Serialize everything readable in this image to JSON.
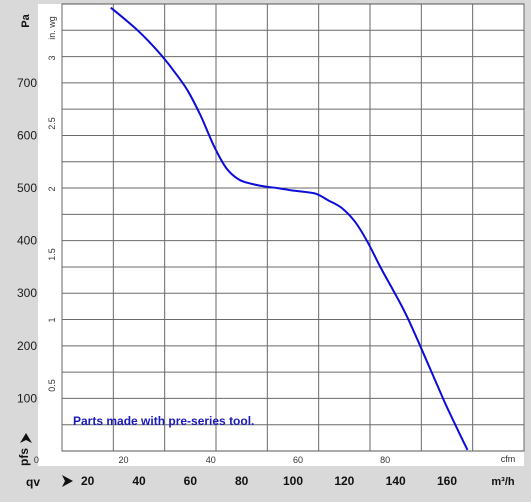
{
  "chart_data": {
    "type": "line",
    "x_primary": {
      "unit": "m³/h",
      "label": "qv",
      "ticks": [
        "20",
        "40",
        "60",
        "80",
        "100",
        "120",
        "140",
        "160"
      ],
      "range": [
        10,
        190
      ]
    },
    "x_secondary": {
      "unit": "cfm",
      "ticks": [
        "0",
        "20",
        "40",
        "60",
        "80"
      ]
    },
    "y_primary": {
      "unit": "Pa",
      "label": "pfs",
      "ticks": [
        "100",
        "200",
        "300",
        "400",
        "500",
        "600",
        "700"
      ],
      "range": [
        0,
        850
      ]
    },
    "y_secondary": {
      "unit": "in. wg",
      "ticks": [
        "0.5",
        "1",
        "1.5",
        "2",
        "2.5",
        "3"
      ]
    },
    "annotation": "Parts made with pre-series tool.",
    "grid": true,
    "series": [
      {
        "color": "#0c0cd8",
        "points": [
          [
            29,
            843
          ],
          [
            34,
            823
          ],
          [
            39,
            802
          ],
          [
            44,
            778
          ],
          [
            49,
            751
          ],
          [
            54,
            720
          ],
          [
            59,
            685
          ],
          [
            64,
            638
          ],
          [
            69,
            582
          ],
          [
            74,
            538
          ],
          [
            79,
            516
          ],
          [
            84,
            508
          ],
          [
            89,
            503
          ],
          [
            94,
            500
          ],
          [
            99,
            496
          ],
          [
            104,
            493
          ],
          [
            109,
            489
          ],
          [
            114,
            476
          ],
          [
            119,
            462
          ],
          [
            124,
            437
          ],
          [
            129,
            398
          ],
          [
            134,
            350
          ],
          [
            139,
            306
          ],
          [
            144,
            260
          ],
          [
            149,
            206
          ],
          [
            154,
            150
          ],
          [
            159,
            94
          ],
          [
            164,
            42
          ],
          [
            168,
            2
          ]
        ]
      }
    ]
  }
}
